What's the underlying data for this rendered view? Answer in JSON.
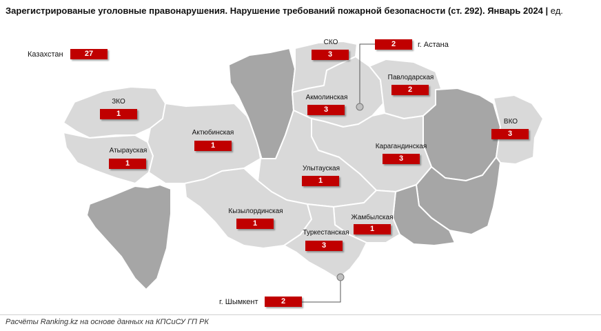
{
  "title": "Зарегистрированые уголовные правонарушения. Нарушение требований пожарной безопасности (ст. 292). Январь 2024",
  "unit": "ед.",
  "source": "Расчёты Ranking.kz на основе данных на КПСиСУ ГП РК",
  "colors": {
    "value_box": "#c00000",
    "region_light": "#d9d9d9",
    "region_dark": "#a6a6a6",
    "border": "#ffffff"
  },
  "total": {
    "label": "Казахстан",
    "value": "27"
  },
  "regions": [
    {
      "name": "ЗКО",
      "value": "1"
    },
    {
      "name": "Атырауская",
      "value": "1"
    },
    {
      "name": "Актюбинская",
      "value": "1"
    },
    {
      "name": "СКО",
      "value": "3"
    },
    {
      "name": "Акмолинская",
      "value": "3"
    },
    {
      "name": "Павлодарская",
      "value": "2"
    },
    {
      "name": "ВКО",
      "value": "3"
    },
    {
      "name": "Карагандинская",
      "value": "3"
    },
    {
      "name": "Улытауская",
      "value": "1"
    },
    {
      "name": "Кызылординская",
      "value": "1"
    },
    {
      "name": "Жамбылская",
      "value": "1"
    },
    {
      "name": "Туркестанская",
      "value": "3"
    }
  ],
  "cities": [
    {
      "name": "г. Астана",
      "value": "2"
    },
    {
      "name": "г. Шымкент",
      "value": "2"
    }
  ]
}
